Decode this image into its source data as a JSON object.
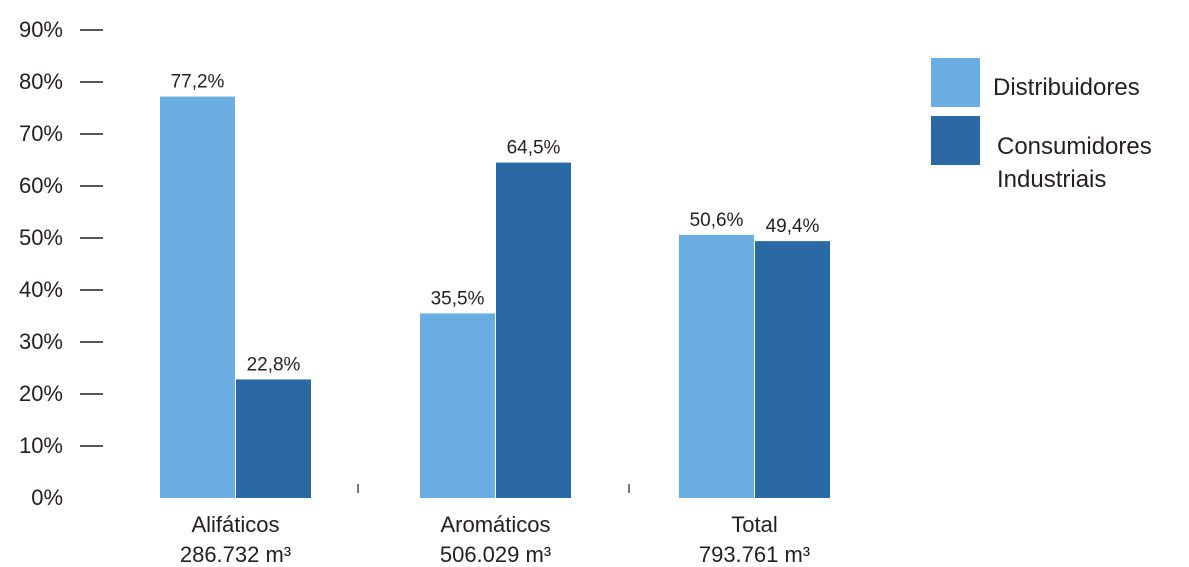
{
  "chart_data": {
    "type": "bar",
    "categories": [
      "Alifáticos",
      "Aromáticos",
      "Total"
    ],
    "category_volumes": [
      "286.732 m³",
      "506.029 m³",
      "793.761 m³"
    ],
    "series": [
      {
        "name": "Distribuidores",
        "values": [
          77.2,
          35.5,
          50.6
        ],
        "labels": [
          "77,2%",
          "35,5%",
          "50,6%"
        ],
        "color": "#6aade0"
      },
      {
        "name": "Consumidores Industriais",
        "name_lines": [
          "Consumidores",
          "Industriais"
        ],
        "values": [
          22.8,
          64.5,
          49.4
        ],
        "labels": [
          "22,8%",
          "64,5%",
          "49,4%"
        ],
        "color": "#2b69a5"
      }
    ],
    "y_ticks": [
      "0%",
      "10%",
      "20%",
      "30%",
      "40%",
      "50%",
      "60%",
      "70%",
      "80%",
      "90%"
    ],
    "ylim": [
      0,
      90
    ],
    "grid": false,
    "legend_position": "top-right",
    "title": "",
    "xlabel": "",
    "ylabel": ""
  }
}
